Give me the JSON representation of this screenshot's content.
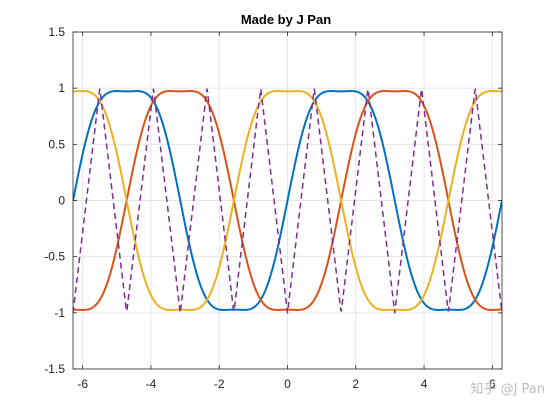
{
  "chart_data": {
    "type": "line",
    "title": "Made by J Pan",
    "xlabel": "",
    "ylabel": "",
    "xlim": [
      -6.2832,
      6.2832
    ],
    "ylim": [
      -1.5,
      1.5
    ],
    "grid": true,
    "xticks": [
      -6,
      -4,
      -2,
      0,
      2,
      4,
      6
    ],
    "yticks": [
      -1.5,
      -1,
      -0.5,
      0,
      0.5,
      1,
      1.5
    ],
    "xtick_labels": [
      "-6",
      "-4",
      "-2",
      "0",
      "2",
      "4",
      "6"
    ],
    "ytick_labels": [
      "-1.5",
      "-1",
      "-0.5",
      "0",
      "0.5",
      "1",
      "1.5"
    ],
    "series": [
      {
        "color": "#0072BD",
        "style": "solid",
        "harmonics": [
          [
            1,
            1.1102
          ],
          [
            3,
            0.1388
          ]
        ],
        "phase": "sin"
      },
      {
        "color": "#D95319",
        "style": "solid",
        "harmonics": [
          [
            1,
            -1.1102
          ],
          [
            3,
            -0.1388
          ]
        ],
        "phase": "sin",
        "shift": 1.5708
      },
      {
        "color": "#EDB120",
        "style": "solid",
        "harmonics": [
          [
            1,
            1.1102
          ],
          [
            3,
            -0.1388
          ]
        ],
        "phase": "cos"
      },
      {
        "color": "#7E2F8E",
        "style": "dashed",
        "wave": "triangle",
        "period": 1.5708,
        "amplitude": 1
      }
    ]
  },
  "watermark": "知乎 @J Pan"
}
